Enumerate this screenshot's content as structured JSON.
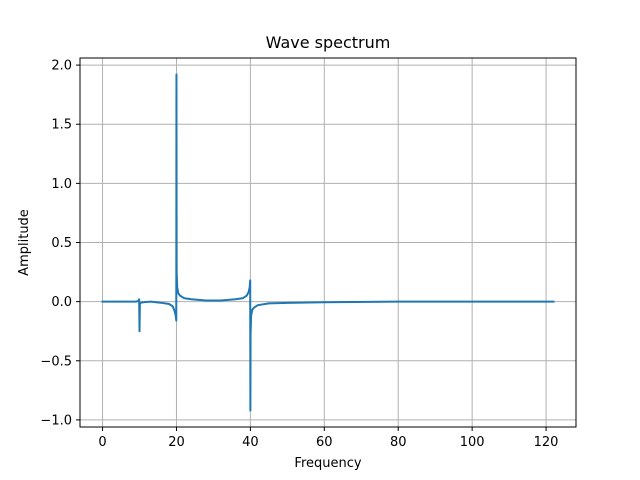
{
  "chart_data": {
    "type": "line",
    "title": "Wave spectrum",
    "xlabel": "Frequency",
    "ylabel": "Amplitude",
    "xlim": [
      -6.1,
      128.1
    ],
    "ylim": [
      -1.06,
      2.06
    ],
    "x_ticks": [
      0,
      20,
      40,
      60,
      80,
      100,
      120
    ],
    "x_tick_labels": [
      "0",
      "20",
      "40",
      "60",
      "80",
      "100",
      "120"
    ],
    "y_ticks": [
      -1.0,
      -0.5,
      0.0,
      0.5,
      1.0,
      1.5,
      2.0
    ],
    "y_tick_labels": [
      "−1.0",
      "−0.5",
      "0.0",
      "0.5",
      "1.0",
      "1.5",
      "2.0"
    ],
    "grid": true,
    "series": [
      {
        "color": "#1f77b4",
        "x": [
          0,
          5,
          9,
          9.6,
          9.8,
          9.9,
          10,
          10.1,
          10.3,
          11,
          13,
          16,
          18,
          19,
          19.5,
          19.8,
          19.95,
          20,
          20.05,
          20.2,
          20.5,
          21,
          22,
          24,
          28,
          32,
          36,
          38,
          39,
          39.5,
          39.8,
          39.95,
          40,
          40.05,
          40.2,
          40.5,
          41,
          42,
          45,
          50,
          60,
          80,
          100,
          122
        ],
        "values": [
          0.0,
          0.0,
          0.0,
          0.005,
          0.01,
          0.02,
          -0.25,
          -0.02,
          -0.01,
          -0.005,
          0.0,
          -0.01,
          -0.02,
          -0.04,
          -0.08,
          -0.12,
          -0.16,
          1.92,
          0.25,
          0.12,
          0.07,
          0.05,
          0.03,
          0.02,
          0.01,
          0.01,
          0.02,
          0.03,
          0.05,
          0.08,
          0.12,
          0.18,
          -0.92,
          -0.28,
          -0.12,
          -0.07,
          -0.05,
          -0.03,
          -0.015,
          -0.01,
          -0.005,
          0.0,
          0.0,
          0.0
        ]
      }
    ]
  }
}
